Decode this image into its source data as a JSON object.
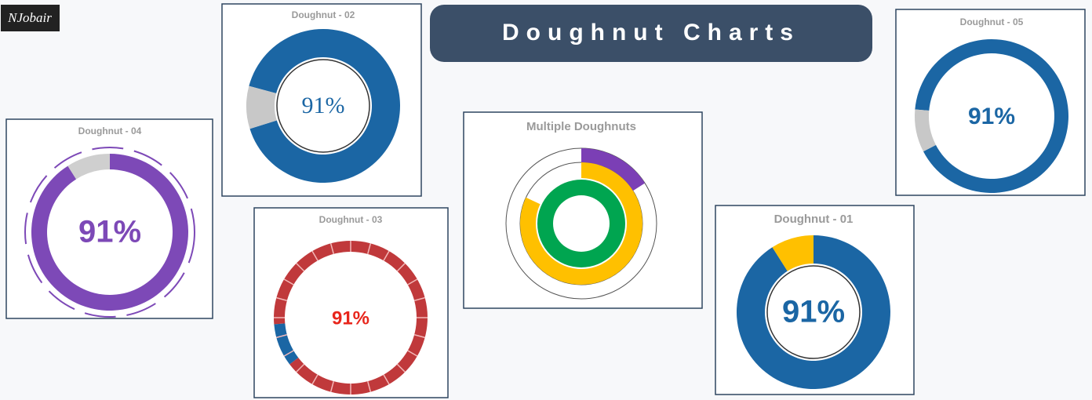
{
  "logo": "NJobair",
  "header": {
    "title": "Doughnut Charts"
  },
  "chart_data": [
    {
      "type": "doughnut",
      "title": "Doughnut - 02",
      "values": [
        91,
        9
      ],
      "value_labels": [
        "91%",
        null
      ],
      "colors": [
        "#1b66a4",
        "#c8c8c8"
      ]
    },
    {
      "type": "doughnut",
      "title": "Doughnut - 04",
      "values": [
        91,
        9
      ],
      "value_labels": [
        "91%",
        null
      ],
      "colors": [
        "#7d49b7",
        "#cfcfcf"
      ]
    },
    {
      "type": "doughnut",
      "title": "Doughnut - 03",
      "values": [
        91,
        9
      ],
      "value_labels": [
        "91%",
        null
      ],
      "colors": [
        "#c0393b",
        "#1b66a4"
      ]
    },
    {
      "type": "multi-doughnut",
      "title": "Multiple Doughnuts",
      "series": [
        {
          "color": "#7b3fb5",
          "values": [
            16
          ]
        },
        {
          "color": "#ffc000",
          "values": [
            82
          ]
        },
        {
          "color": "#00a550",
          "values": [
            100
          ]
        }
      ]
    },
    {
      "type": "doughnut",
      "title": "Doughnut - 05",
      "values": [
        91,
        9
      ],
      "value_labels": [
        "91%",
        null
      ],
      "colors": [
        "#1b66a4",
        "#c8c8c8"
      ]
    },
    {
      "type": "doughnut",
      "title": "Doughnut - 01",
      "values": [
        91,
        9
      ],
      "value_labels": [
        "91%",
        null
      ],
      "colors": [
        "#1b66a4",
        "#ffc000"
      ]
    }
  ]
}
